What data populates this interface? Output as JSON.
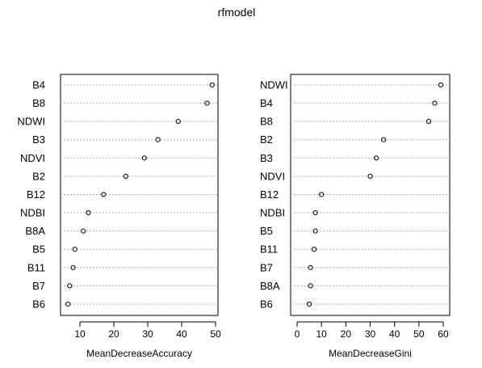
{
  "title": "rfmodel",
  "chart_data": [
    {
      "type": "scatter",
      "title": "rfmodel",
      "xlabel": "MeanDecreaseAccuracy",
      "ylabel": "",
      "xlim": [
        5,
        50
      ],
      "xticks": [
        10,
        20,
        30,
        40,
        50
      ],
      "grid": true,
      "categories": [
        "B4",
        "B8",
        "NDWI",
        "B3",
        "NDVI",
        "B2",
        "B12",
        "NDBI",
        "B8A",
        "B5",
        "B11",
        "B7",
        "B6"
      ],
      "values": [
        49,
        47.5,
        39,
        33,
        29,
        23.5,
        17,
        12.5,
        11,
        8.5,
        8,
        7,
        6.5
      ]
    },
    {
      "type": "scatter",
      "title": "rfmodel",
      "xlabel": "MeanDecreaseGini",
      "ylabel": "",
      "xlim": [
        0,
        60
      ],
      "xticks": [
        0,
        10,
        20,
        30,
        40,
        50,
        60
      ],
      "grid": true,
      "categories": [
        "NDWI",
        "B4",
        "B8",
        "B2",
        "B3",
        "NDVI",
        "B12",
        "NDBI",
        "B5",
        "B11",
        "B7",
        "B8A",
        "B6"
      ],
      "values": [
        59,
        56.5,
        54,
        35.5,
        32.5,
        30,
        10,
        7.5,
        7.5,
        7,
        5.5,
        5.5,
        5
      ]
    }
  ]
}
